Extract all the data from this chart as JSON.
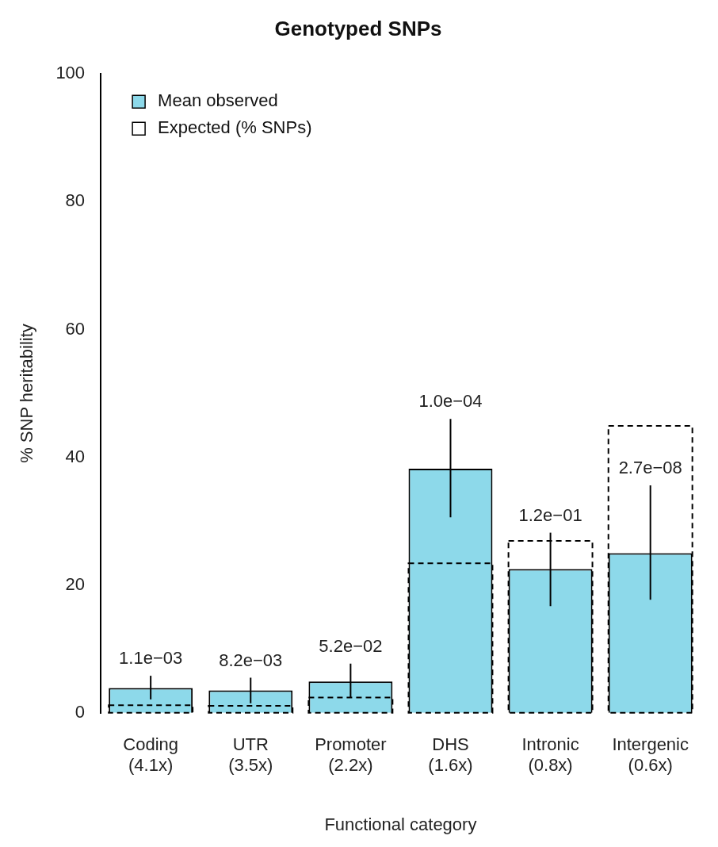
{
  "chart_data": {
    "type": "bar",
    "title": "Genotyped SNPs",
    "xlabel": "Functional category",
    "ylabel": "% SNP heritability",
    "categories": [
      "Coding\n(4.1x)",
      "UTR\n(3.5x)",
      "Promoter\n(2.2x)",
      "DHS\n(1.6x)",
      "Intronic\n(0.8x)",
      "Intergenic\n(0.6x)"
    ],
    "series": [
      {
        "name": "Mean observed",
        "color": "#8dd9ea",
        "values": [
          3.9,
          3.5,
          4.9,
          38.2,
          22.5,
          25.0
        ],
        "errors": [
          [
            2.1,
            5.8
          ],
          [
            1.5,
            5.5
          ],
          [
            2.4,
            7.7
          ],
          [
            30.6,
            46.0
          ],
          [
            16.7,
            28.2
          ],
          [
            17.7,
            35.6
          ]
        ]
      },
      {
        "name": "Expected (% SNPs)",
        "color": "#000000",
        "line_style": "dashed",
        "values": [
          1.2,
          1.1,
          2.4,
          23.4,
          26.9,
          44.9
        ]
      }
    ],
    "annotations": [
      {
        "text": "1.1e−03",
        "x": "Coding\n(4.1x)",
        "y": 5.8
      },
      {
        "text": "8.2e−03",
        "x": "UTR\n(3.5x)",
        "y": 5.5
      },
      {
        "text": "5.2e−02",
        "x": "Promoter\n(2.2x)",
        "y": 7.7
      },
      {
        "text": "1.0e−04",
        "x": "DHS\n(1.6x)",
        "y": 46.0
      },
      {
        "text": "1.2e−01",
        "x": "Intronic\n(0.8x)",
        "y": 28.2
      },
      {
        "text": "2.7e−08",
        "x": "Intergenic\n(0.6x)",
        "y": 35.6
      }
    ],
    "ylim": [
      0,
      100
    ],
    "yticks": [
      0,
      20,
      40,
      60,
      80,
      100
    ],
    "grid": false,
    "legend": "top left"
  }
}
